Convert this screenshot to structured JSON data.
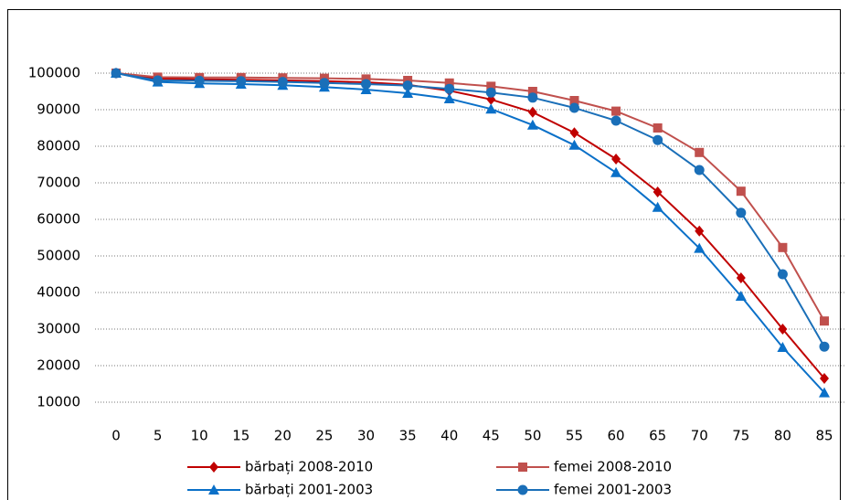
{
  "chart_data": {
    "type": "line",
    "categories": [
      "0",
      "5",
      "10",
      "15",
      "20",
      "25",
      "30",
      "35",
      "40",
      "45",
      "50",
      "55",
      "60",
      "65",
      "70",
      "75",
      "80",
      "85"
    ],
    "series": [
      {
        "name": "bărbați 2008-2010",
        "color": "#c00000",
        "marker": "diamond",
        "values": [
          100000,
          98500,
          98300,
          98200,
          98000,
          97800,
          97500,
          96800,
          95200,
          92800,
          89300,
          83700,
          76500,
          67500,
          56800,
          44000,
          30000,
          16500
        ]
      },
      {
        "name": "femei 2008-2010",
        "color": "#c0504d",
        "marker": "square",
        "values": [
          100000,
          98900,
          98800,
          98800,
          98700,
          98600,
          98400,
          98000,
          97300,
          96400,
          95000,
          92500,
          89600,
          85000,
          78300,
          67700,
          52300,
          32200
        ]
      },
      {
        "name": "bărbați 2001-2003",
        "color": "#0a70c8",
        "marker": "triangle",
        "values": [
          100000,
          97600,
          97200,
          97000,
          96700,
          96200,
          95500,
          94500,
          93000,
          90200,
          85800,
          80300,
          72800,
          63300,
          52100,
          39000,
          25000,
          12600
        ]
      },
      {
        "name": "femei 2001-2003",
        "color": "#1a6fb8",
        "marker": "circle",
        "values": [
          100000,
          98000,
          97900,
          97800,
          97600,
          97300,
          97000,
          96600,
          95700,
          94700,
          93300,
          90500,
          87000,
          81700,
          73500,
          61800,
          45000,
          25200
        ]
      }
    ],
    "ylim": [
      10000,
      100000
    ],
    "yticks": [
      10000,
      20000,
      30000,
      40000,
      50000,
      60000,
      70000,
      80000,
      90000,
      100000
    ],
    "grid": true,
    "legend": "bottom"
  }
}
